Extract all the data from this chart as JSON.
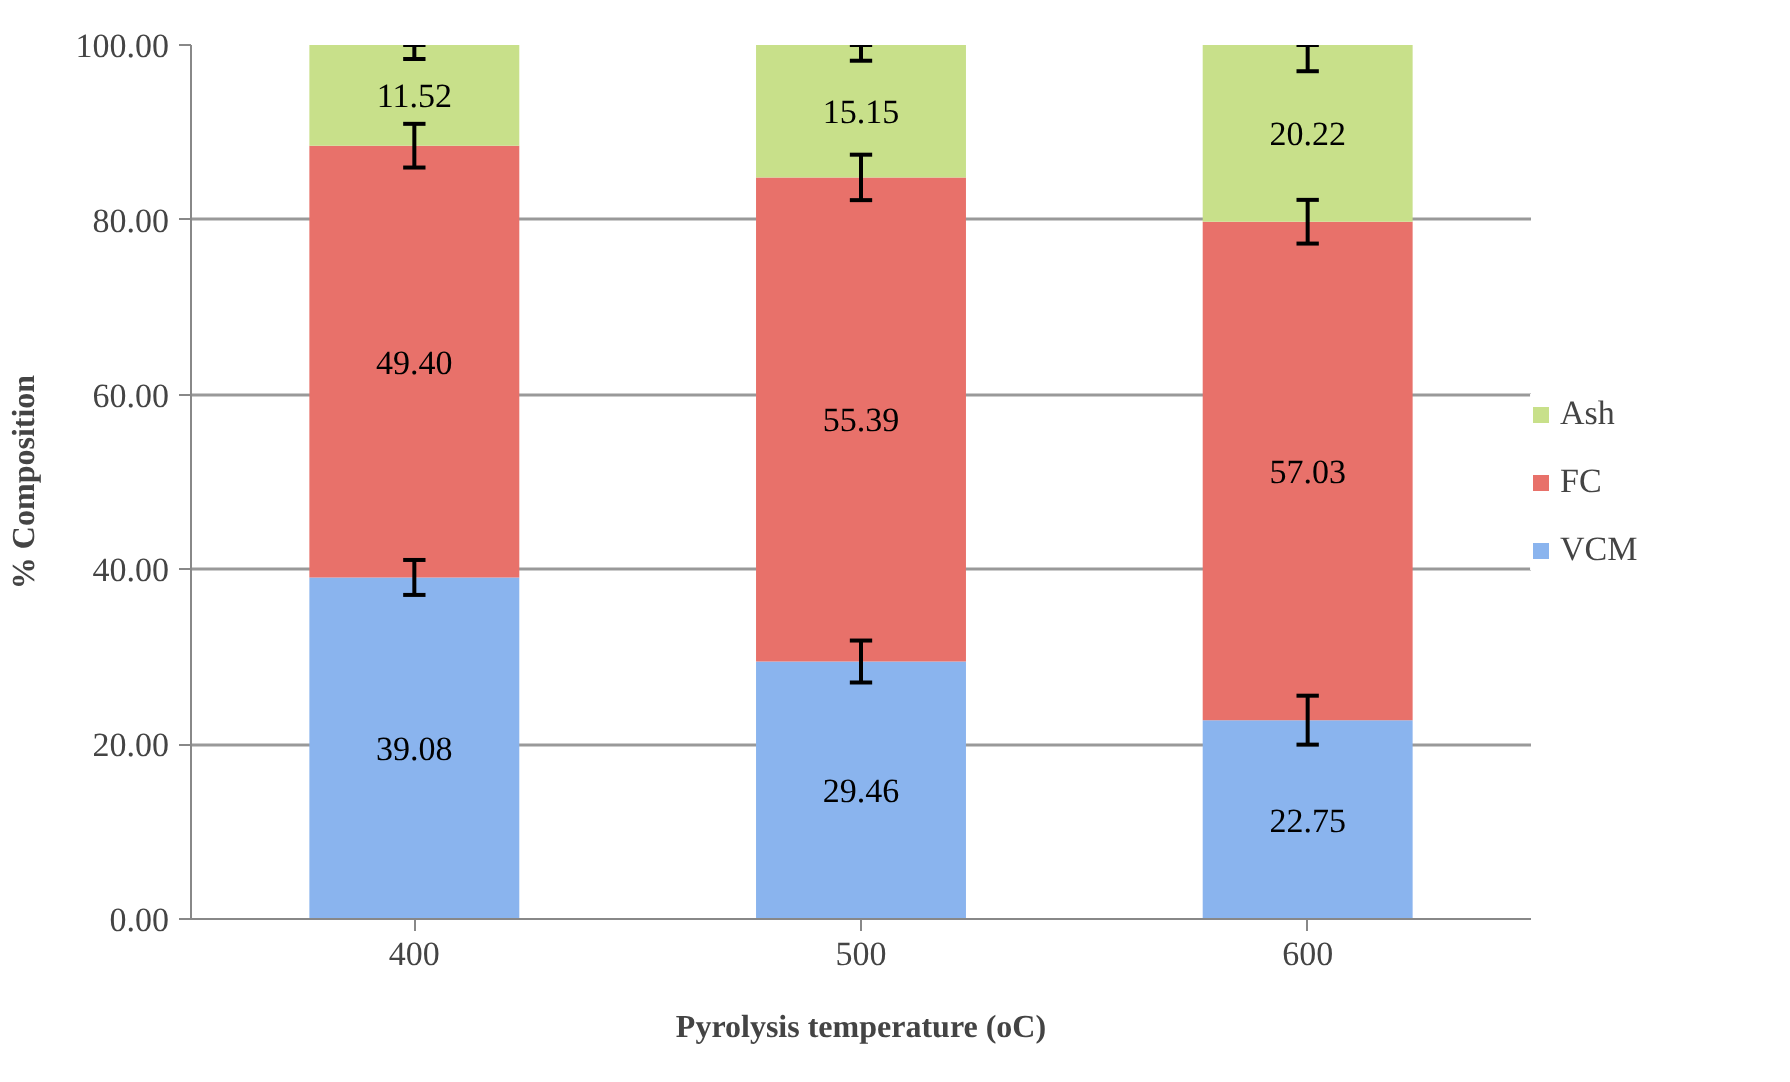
{
  "chart_data": {
    "type": "bar",
    "stacked": true,
    "xlabel": "Pyrolysis temperature (oC)",
    "ylabel": "% Composition",
    "categories": [
      "400",
      "500",
      "600"
    ],
    "series": [
      {
        "name": "VCM",
        "color": "#8ab4ee",
        "values": [
          39.08,
          29.46,
          22.75
        ],
        "value_labels": [
          "39.08",
          "29.46",
          "22.75"
        ],
        "errors": [
          2.0,
          2.4,
          2.8
        ]
      },
      {
        "name": "FC",
        "color": "#e8716a",
        "values": [
          49.4,
          55.39,
          57.03
        ],
        "value_labels": [
          "49.40",
          "55.39",
          "57.03"
        ],
        "errors": [
          2.5,
          2.6,
          2.5
        ]
      },
      {
        "name": "Ash",
        "color": "#c8e08a",
        "values": [
          11.52,
          15.15,
          20.22
        ],
        "value_labels": [
          "11.52",
          "15.15",
          "20.22"
        ],
        "errors": [
          [
            98.4,
            100
          ],
          [
            98.2,
            100
          ],
          [
            97.0,
            100
          ]
        ]
      }
    ],
    "ylim": [
      0,
      100
    ],
    "yticks": [
      {
        "value": 0,
        "label": "0.00"
      },
      {
        "value": 20,
        "label": "20.00"
      },
      {
        "value": 40,
        "label": "40.00"
      },
      {
        "value": 60,
        "label": "60.00"
      },
      {
        "value": 80,
        "label": "80.00"
      },
      {
        "value": 100,
        "label": "100.00"
      }
    ],
    "grid": "y",
    "legend": "right"
  }
}
